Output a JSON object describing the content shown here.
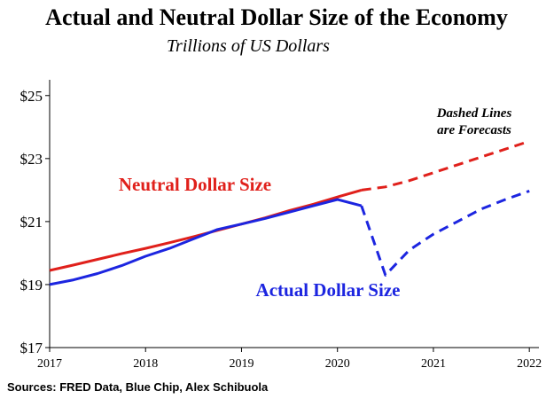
{
  "chart_data": {
    "type": "line",
    "title": "Actual and Neutral Dollar Size of the Economy",
    "subtitle": "Trillions of US Dollars",
    "ylim": [
      17,
      25.5
    ],
    "xlim": [
      2017,
      2022.1
    ],
    "y_ticks": [
      17,
      19,
      21,
      23,
      25
    ],
    "y_tick_labels": [
      "$17",
      "$19",
      "$21",
      "$23",
      "$25"
    ],
    "x_ticks": [
      2017,
      2018,
      2019,
      2020,
      2021,
      2022
    ],
    "x_tick_labels": [
      "2017",
      "2018",
      "2019",
      "2020",
      "2021",
      "2022"
    ],
    "grid": false,
    "series": [
      {
        "name": "Neutral Dollar Size",
        "color": "#e0201b",
        "actual": {
          "x": [
            2017.0,
            2017.25,
            2017.5,
            2017.75,
            2018.0,
            2018.25,
            2018.5,
            2018.75,
            2019.0,
            2019.25,
            2019.5,
            2019.75,
            2020.0,
            2020.25
          ],
          "y": [
            19.45,
            19.62,
            19.8,
            19.98,
            20.15,
            20.33,
            20.52,
            20.72,
            20.92,
            21.12,
            21.35,
            21.55,
            21.78,
            22.0
          ]
        },
        "forecast": {
          "x": [
            2020.25,
            2020.5,
            2020.75,
            2021.0,
            2021.25,
            2021.5,
            2021.75,
            2022.0
          ],
          "y": [
            22.0,
            22.1,
            22.3,
            22.55,
            22.8,
            23.05,
            23.3,
            23.55
          ]
        }
      },
      {
        "name": "Actual Dollar Size",
        "color": "#1c25e0",
        "actual": {
          "x": [
            2017.0,
            2017.25,
            2017.5,
            2017.75,
            2018.0,
            2018.25,
            2018.5,
            2018.75,
            2019.0,
            2019.25,
            2019.5,
            2019.75,
            2020.0,
            2020.25
          ],
          "y": [
            19.0,
            19.15,
            19.35,
            19.6,
            19.9,
            20.15,
            20.45,
            20.75,
            20.92,
            21.1,
            21.3,
            21.5,
            21.7,
            21.5
          ]
        },
        "forecast": {
          "x": [
            2020.25,
            2020.5,
            2020.75,
            2021.0,
            2021.25,
            2021.5,
            2021.75,
            2022.0
          ],
          "y": [
            21.5,
            19.3,
            20.1,
            20.6,
            21.0,
            21.4,
            21.7,
            21.97
          ]
        }
      }
    ],
    "annotations": {
      "neutral_label": "Neutral Dollar Size",
      "actual_label": "Actual Dollar Size",
      "forecast_note_line1": "Dashed Lines",
      "forecast_note_line2": "are Forecasts"
    }
  },
  "source": "Sources: FRED Data, Blue Chip, Alex Schibuola"
}
